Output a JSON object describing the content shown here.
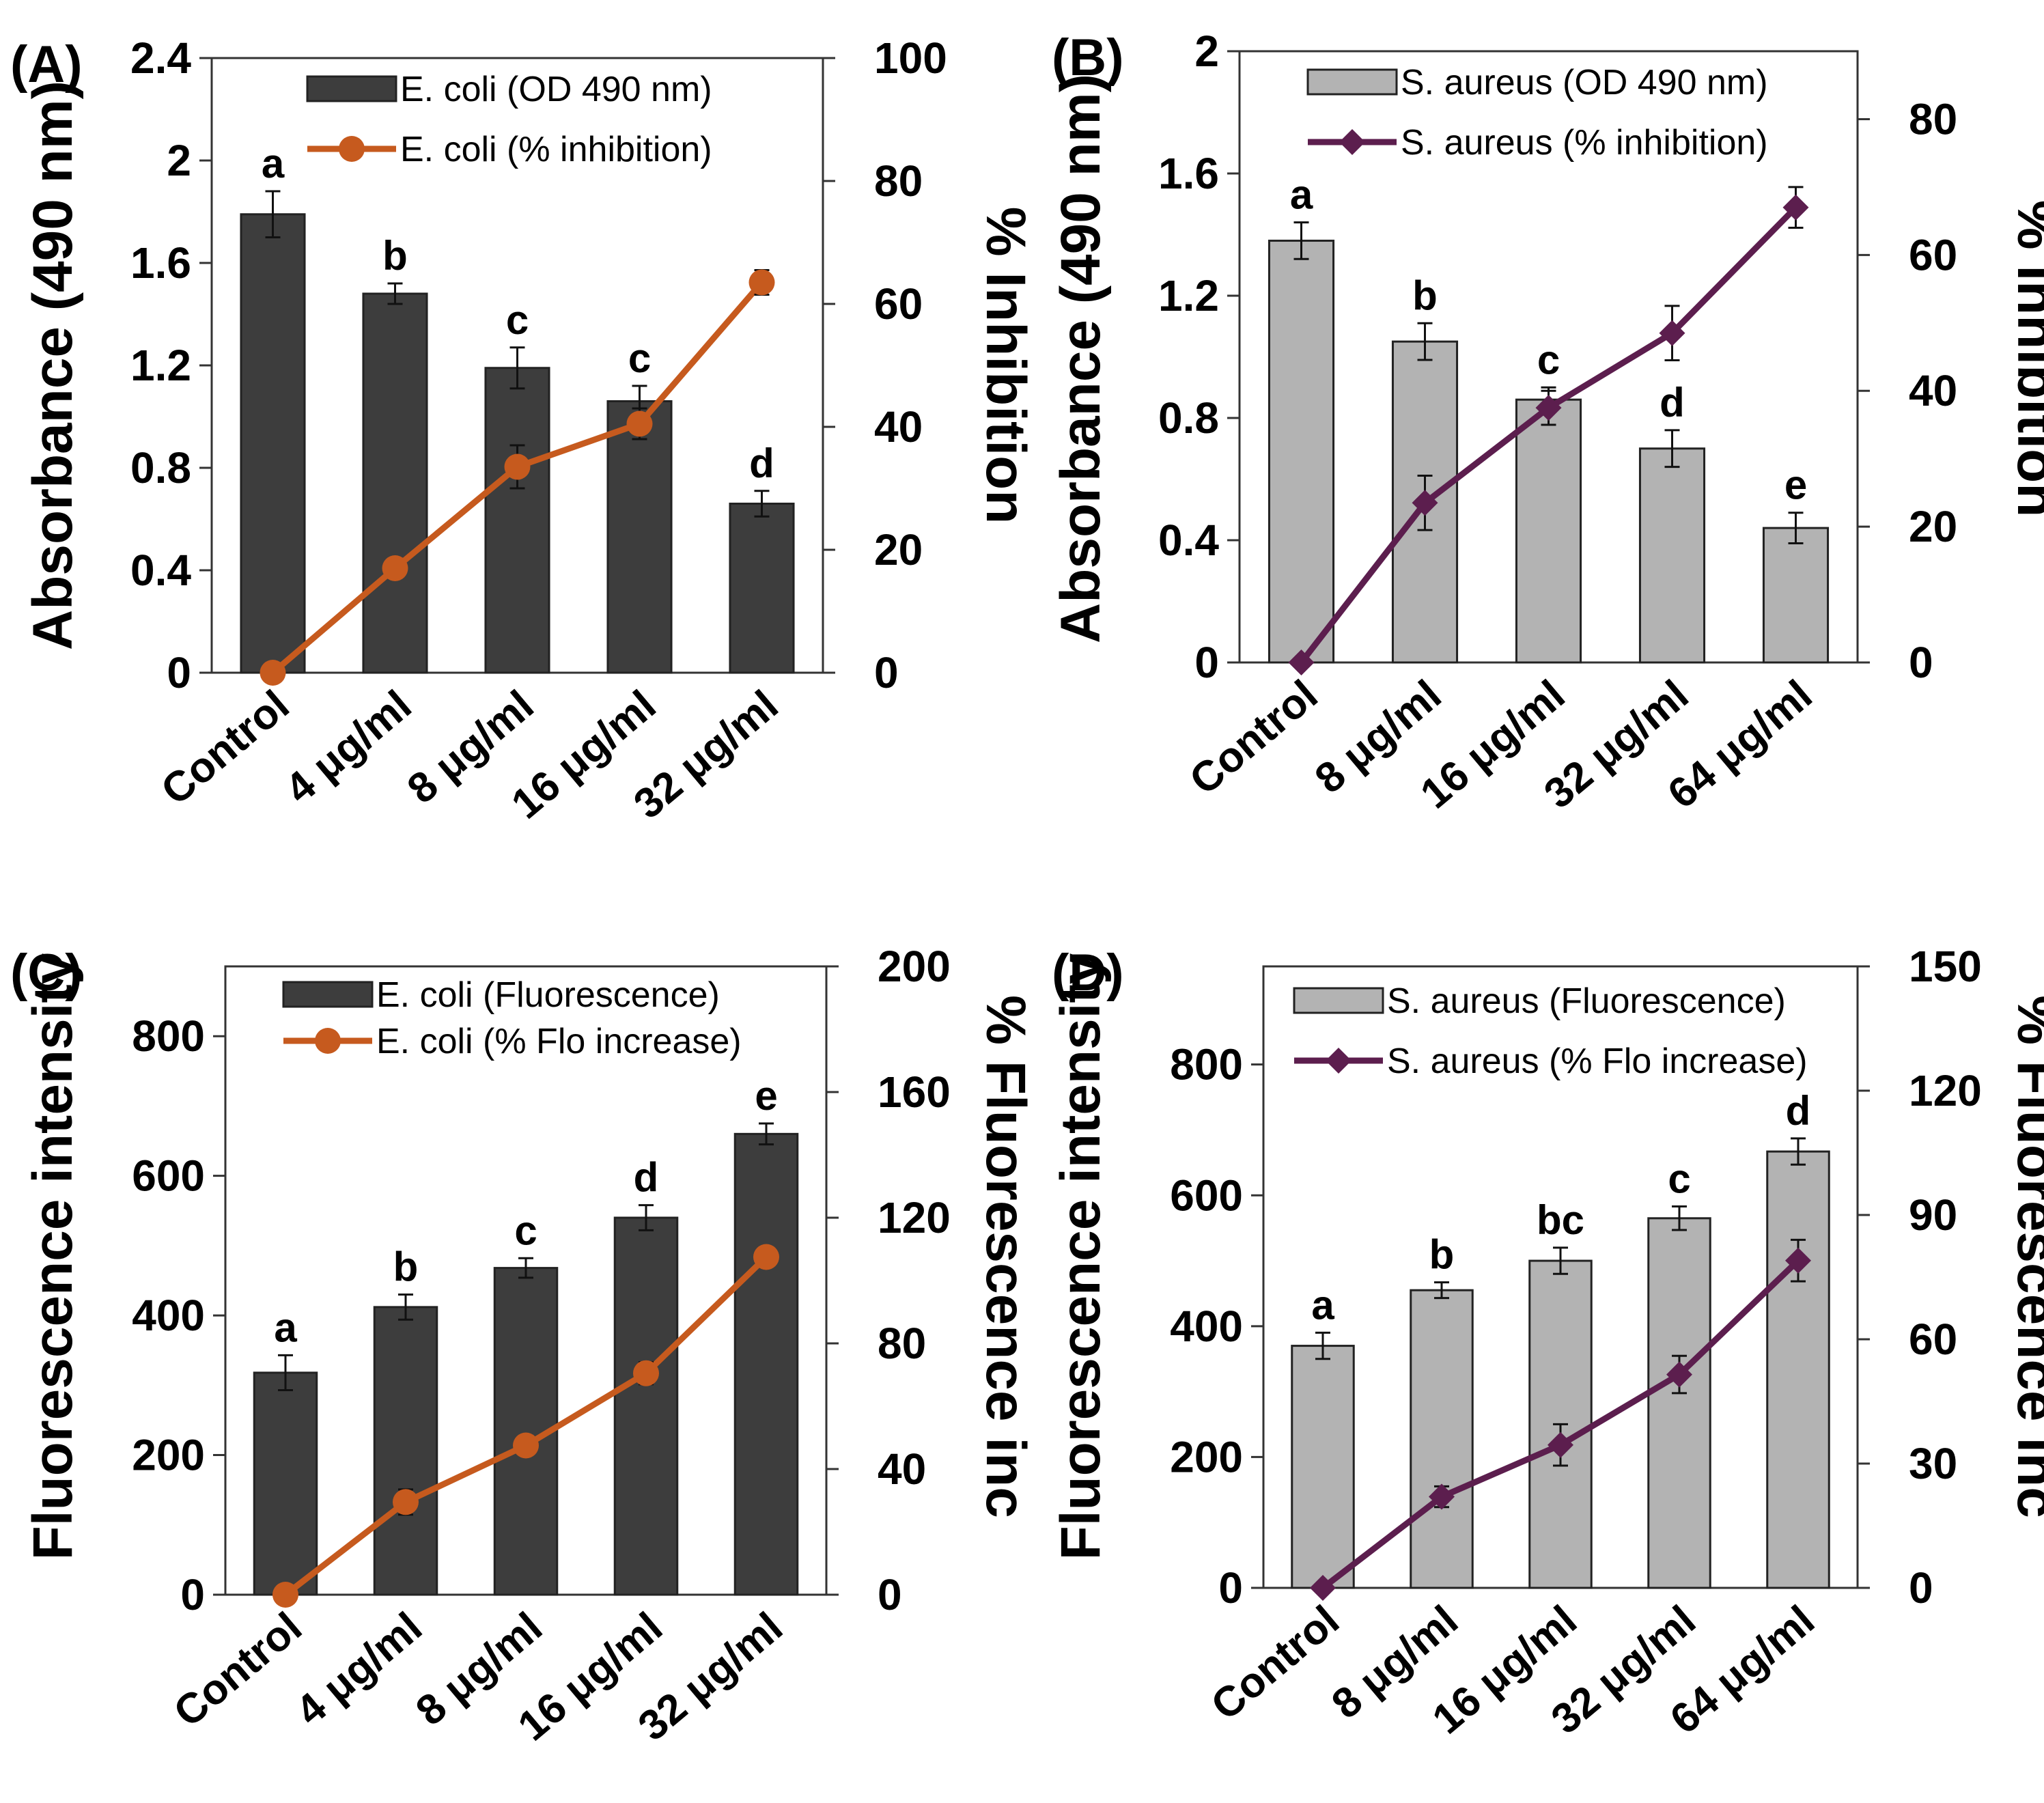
{
  "colors": {
    "ecoli_bar": "#3d3d3d",
    "saureus_bar": "#b3b3b3",
    "ecoli_line": "#c65a1e",
    "saureus_line": "#5c1e4e"
  },
  "chart_data": [
    {
      "type": "bar",
      "panel_label": "(A)",
      "categories": [
        "Control",
        "4 μg/ml",
        "8 μg/ml",
        "16 μg/ml",
        "32 μg/ml"
      ],
      "ylabel": "Absorbance (490 nm)",
      "y2label": "% Inhibition",
      "ylim": [
        0,
        2.4
      ],
      "yticks": [
        "0",
        "0.4",
        "0.8",
        "1.2",
        "1.6",
        "2",
        "2.4"
      ],
      "y2lim": [
        0,
        100
      ],
      "y2ticks": [
        "0",
        "20",
        "40",
        "60",
        "80",
        "100"
      ],
      "bar_series": {
        "name": "E. coli (OD 490 nm)",
        "values": [
          1.79,
          1.48,
          1.19,
          1.06,
          0.66
        ],
        "errors": [
          0.09,
          0.04,
          0.08,
          0.06,
          0.05
        ]
      },
      "line_series": {
        "name": "E. coli (% inhibition)",
        "marker": "circle",
        "values": [
          0,
          17,
          33.5,
          40.5,
          63.5
        ],
        "errors": [
          0,
          1,
          3.5,
          2.5,
          2
        ]
      },
      "significance": [
        "a",
        "b",
        "c",
        "c",
        "d"
      ]
    },
    {
      "type": "bar",
      "panel_label": "(B)",
      "categories": [
        "Control",
        "8 μg/ml",
        "16 μg/ml",
        "32 μg/ml",
        "64 μg/ml"
      ],
      "ylabel": "Absorbance (490 nm)",
      "y2label": "% Inhibition",
      "ylim": [
        0,
        2
      ],
      "yticks": [
        "0",
        "0.4",
        "0.8",
        "1.2",
        "1.6",
        "2"
      ],
      "y2lim": [
        0,
        90
      ],
      "y2ticks": [
        "0",
        "20",
        "40",
        "60",
        "80"
      ],
      "bar_series": {
        "name": "S. aureus (OD 490 nm)",
        "values": [
          1.38,
          1.05,
          0.86,
          0.7,
          0.44
        ],
        "errors": [
          0.06,
          0.06,
          0.04,
          0.06,
          0.05
        ]
      },
      "line_series": {
        "name": "S. aureus (% inhibition)",
        "marker": "diamond",
        "values": [
          0,
          23.5,
          37.5,
          48.5,
          67
        ],
        "errors": [
          0,
          4,
          2.5,
          4,
          3
        ]
      },
      "significance": [
        "a",
        "b",
        "c",
        "d",
        "e"
      ]
    },
    {
      "type": "bar",
      "panel_label": "(C)",
      "categories": [
        "Control",
        "4 μg/ml",
        "8 μg/ml",
        "16 μg/ml",
        "32 μg/ml"
      ],
      "ylabel": "Fluorescence intensity",
      "y2label": "% Fluorescence inc",
      "ylim": [
        0,
        900
      ],
      "yticks": [
        "0",
        "200",
        "400",
        "600",
        "800"
      ],
      "y2lim": [
        0,
        200
      ],
      "y2ticks": [
        "0",
        "40",
        "80",
        "120",
        "160",
        "200"
      ],
      "bar_series": {
        "name": "E. coli (Fluorescence)",
        "values": [
          318,
          412,
          468,
          540,
          660
        ],
        "errors": [
          25,
          18,
          14,
          18,
          15
        ]
      },
      "line_series": {
        "name": "E. coli (% Flo increase)",
        "marker": "circle",
        "values": [
          0,
          29.5,
          47.5,
          70.5,
          107.5
        ],
        "errors": [
          0,
          4,
          3,
          3.5,
          3
        ]
      },
      "significance": [
        "a",
        "b",
        "c",
        "d",
        "e"
      ]
    },
    {
      "type": "bar",
      "panel_label": "(D)",
      "categories": [
        "Control",
        "8 μg/ml",
        "16 μg/ml",
        "32 μg/ml",
        "64 μg/ml"
      ],
      "ylabel": "Fluorescence intensity",
      "y2label": "% Fluorescence inc",
      "ylim": [
        0,
        950
      ],
      "yticks": [
        "0",
        "200",
        "400",
        "600",
        "800"
      ],
      "y2lim": [
        0,
        150
      ],
      "y2ticks": [
        "0",
        "30",
        "60",
        "90",
        "120",
        "150"
      ],
      "bar_series": {
        "name": "S. aureus (Fluorescence)",
        "values": [
          370,
          455,
          500,
          565,
          667
        ],
        "errors": [
          20,
          12,
          20,
          18,
          20
        ]
      },
      "line_series": {
        "name": "S. aureus (% Flo increase)",
        "marker": "diamond",
        "values": [
          0,
          22,
          34.5,
          51.5,
          79
        ],
        "errors": [
          0,
          2.5,
          5,
          4.5,
          5
        ]
      },
      "significance": [
        "a",
        "b",
        "bc",
        "c",
        "d"
      ]
    }
  ]
}
